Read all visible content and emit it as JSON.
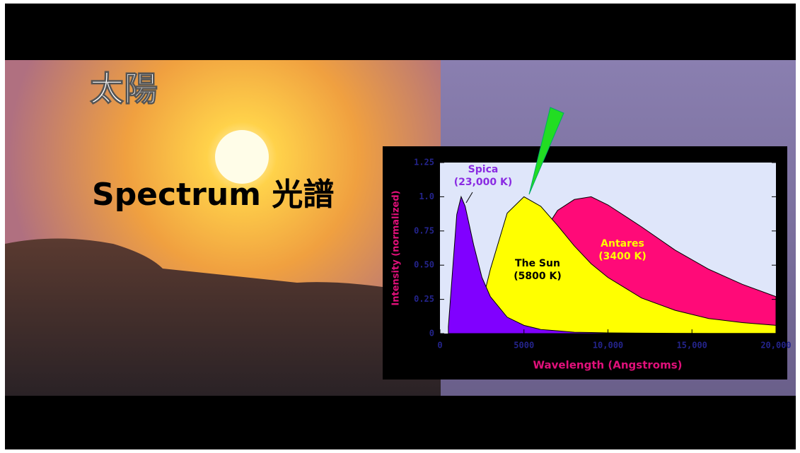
{
  "overlay": {
    "title": "太陽",
    "subtitle": "Spectrum 光譜"
  },
  "chart_data": {
    "type": "area",
    "xlabel": "Wavelength (Angstroms)",
    "ylabel": "Intensity (normalized)",
    "x": [
      500,
      1000,
      1260,
      1500,
      2000,
      2500,
      3000,
      4000,
      5000,
      6000,
      7000,
      8000,
      9000,
      10000,
      12000,
      14000,
      16000,
      18000,
      20000
    ],
    "series": [
      {
        "name": "Antares",
        "annotation": "(3400 K)",
        "color": "#ff0a78",
        "label_color": "#ffff00",
        "values": [
          0,
          0,
          0,
          0,
          0,
          0.002,
          0.02,
          0.16,
          0.43,
          0.71,
          0.9,
          0.98,
          1.0,
          0.94,
          0.78,
          0.61,
          0.47,
          0.36,
          0.27
        ]
      },
      {
        "name": "The Sun",
        "annotation": "(5800 K)",
        "color": "#ffff00",
        "label_color": "#000000",
        "values": [
          0,
          0,
          0,
          0.002,
          0.06,
          0.22,
          0.47,
          0.88,
          1.0,
          0.93,
          0.79,
          0.64,
          0.51,
          0.41,
          0.26,
          0.17,
          0.11,
          0.08,
          0.06
        ]
      },
      {
        "name": "Spica",
        "annotation": "(23,000 K)",
        "color": "#8000ff",
        "label_color": "#8a2be2",
        "values": [
          0.05,
          0.87,
          1.0,
          0.93,
          0.65,
          0.41,
          0.27,
          0.12,
          0.06,
          0.03,
          0.02,
          0.01,
          0.008,
          0.005,
          0.003,
          0.002,
          0.001,
          0.001,
          0.001
        ]
      }
    ],
    "xlim": [
      0,
      20000
    ],
    "xticks": [
      0,
      5000,
      {
        "value": 10000,
        "label": "10,000"
      },
      {
        "value": 15000,
        "label": "15,000"
      },
      {
        "value": 20000,
        "label": "20,000"
      }
    ],
    "ylim": [
      0,
      1.25
    ],
    "yticks": [
      0,
      0.25,
      {
        "value": 0.5,
        "label": "0.50"
      },
      0.75,
      {
        "value": 1,
        "label": "1.0"
      },
      1.25
    ]
  }
}
